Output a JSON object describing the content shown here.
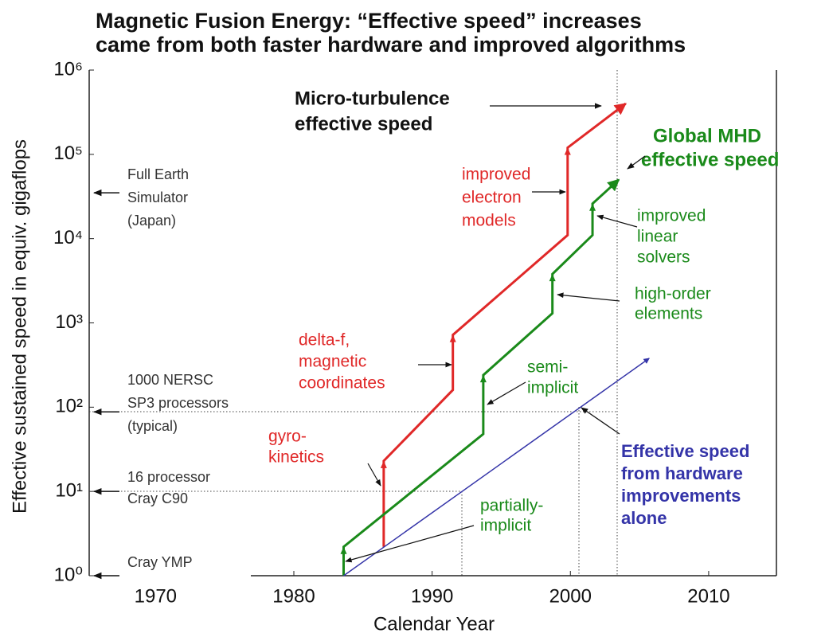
{
  "chart_data": {
    "type": "line",
    "title": [
      "Magnetic Fusion Energy:  “Effective speed” increases",
      "came from both faster hardware and improved algorithms"
    ],
    "xlabel": "Calendar Year",
    "ylabel": "Effective sustained  speed  in equiv. gigaflops",
    "log_y": true,
    "xlim": [
      1965.2,
      2014.9
    ],
    "xticks": [
      1970,
      1980,
      1990,
      2000,
      2010
    ],
    "ylim": [
      1,
      1000000
    ],
    "yticks": [
      {
        "value": 1,
        "label": "10⁰"
      },
      {
        "value": 10,
        "label": "10¹"
      },
      {
        "value": 100,
        "label": "10²"
      },
      {
        "value": 1000,
        "label": "10³"
      },
      {
        "value": 10000,
        "label": "10⁴"
      },
      {
        "value": 100000,
        "label": "10⁵"
      },
      {
        "value": 1000000,
        "label": "10⁶"
      }
    ],
    "series": [
      {
        "name": [
          "Micro-turbulence",
          "effective speed"
        ],
        "color": "#e02828",
        "x": [
          1986.5,
          1986.5,
          1991.5,
          1991.5,
          1999.8,
          1999.8,
          2004
        ],
        "values": [
          2.2,
          23,
          160,
          720,
          11000,
          120000,
          400000
        ]
      },
      {
        "name": [
          "Global MHD",
          "effective speed"
        ],
        "color": "#1a8a1a",
        "x": [
          1983.6,
          1983.6,
          1993.7,
          1993.7,
          1998.7,
          1998.7,
          2001.6,
          2001.6,
          2003.5
        ],
        "values": [
          1,
          2.2,
          48,
          240,
          1300,
          3800,
          11000,
          26000,
          50000
        ]
      },
      {
        "name": [
          "Effective speed",
          "from hardware",
          "improvements",
          "alone"
        ],
        "color": "#3434a8",
        "x": [
          1983.6,
          2005.7
        ],
        "values": [
          1,
          380
        ]
      }
    ],
    "reference_levels": [
      {
        "label": [
          "Full Earth",
          "Simulator",
          "(Japan)"
        ],
        "value": 35000
      },
      {
        "label": [
          "1000 NERSC",
          "SP3 processors",
          "(typical)"
        ],
        "value": 88
      },
      {
        "label": [
          "16 processor",
          "Cray C90"
        ],
        "value": 10
      },
      {
        "label": [
          "Cray YMP"
        ],
        "value": 1
      }
    ],
    "annotations": [
      {
        "text": [
          "improved",
          "electron",
          "models"
        ],
        "color": "#e02828"
      },
      {
        "text": [
          "delta-f,",
          "magnetic",
          "coordinates"
        ],
        "color": "#e02828"
      },
      {
        "text": [
          "gyro-",
          "kinetics"
        ],
        "color": "#e02828"
      },
      {
        "text": [
          "improved",
          "linear",
          "solvers"
        ],
        "color": "#1a8a1a"
      },
      {
        "text": [
          "high-order",
          "elements"
        ],
        "color": "#1a8a1a"
      },
      {
        "text": [
          "semi-",
          "implicit"
        ],
        "color": "#1a8a1a"
      },
      {
        "text": [
          "partially-",
          "implicit"
        ],
        "color": "#1a8a1a"
      }
    ]
  }
}
